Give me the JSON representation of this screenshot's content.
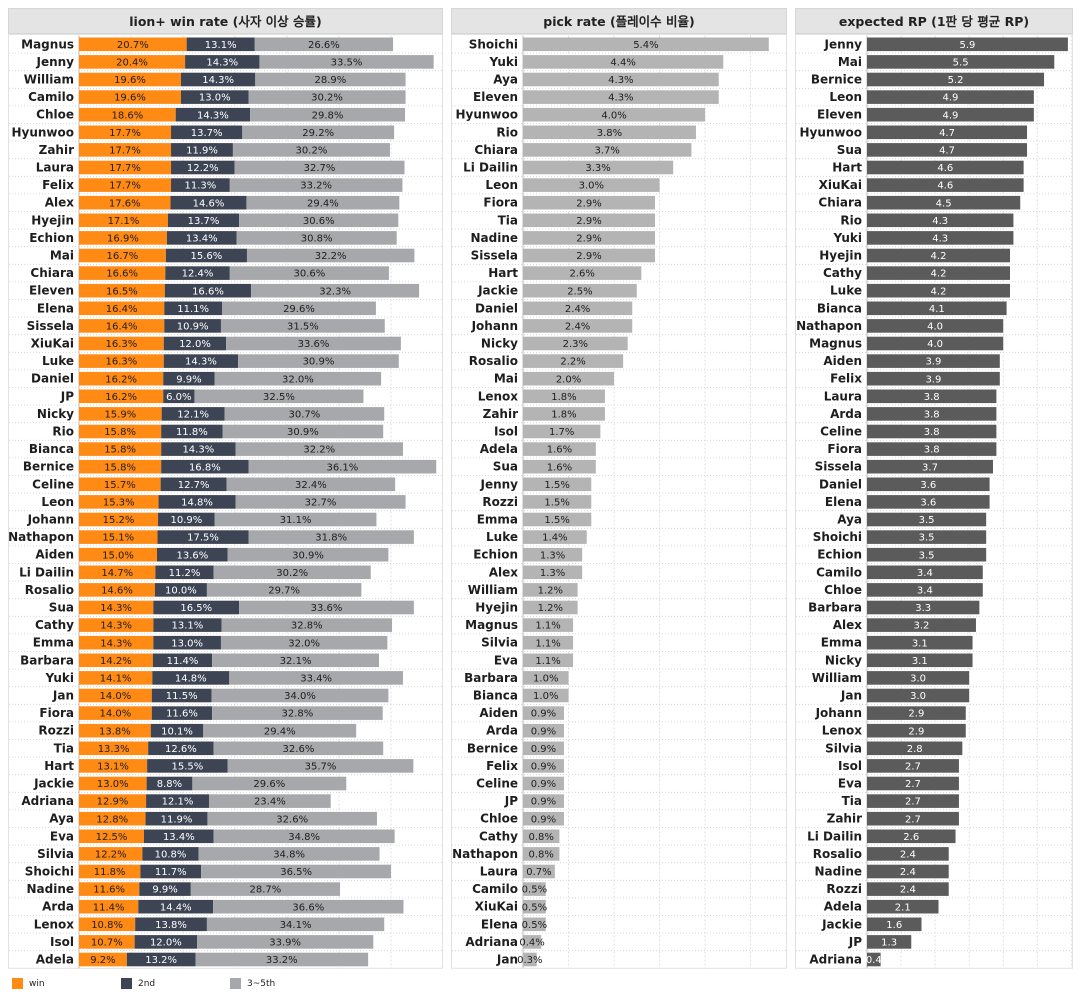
{
  "colors": {
    "win": "#ff8a14",
    "second": "#3d4454",
    "third_fifth": "#a6a8ab",
    "pick": "#b4b4b4",
    "rp": "#5b5b5b"
  },
  "legend": [
    {
      "label": "win",
      "color": "#ff8a14"
    },
    {
      "label": "2nd",
      "color": "#3d4454"
    },
    {
      "label": "3~5th",
      "color": "#a6a8ab"
    }
  ],
  "chart_data": [
    {
      "type": "bar",
      "stacked": true,
      "orientation": "horizontal",
      "title": "lion+ win rate (사자 이상 승률)",
      "categories": [
        "Magnus",
        "Jenny",
        "William",
        "Camilo",
        "Chloe",
        "Hyunwoo",
        "Zahir",
        "Laura",
        "Felix",
        "Alex",
        "Hyejin",
        "Echion",
        "Mai",
        "Chiara",
        "Eleven",
        "Elena",
        "Sissela",
        "XiuKai",
        "Luke",
        "Daniel",
        "JP",
        "Nicky",
        "Rio",
        "Bianca",
        "Bernice",
        "Celine",
        "Leon",
        "Johann",
        "Nathapon",
        "Aiden",
        "Li Dailin",
        "Rosalio",
        "Sua",
        "Cathy",
        "Emma",
        "Barbara",
        "Yuki",
        "Jan",
        "Fiora",
        "Rozzi",
        "Tia",
        "Hart",
        "Jackie",
        "Adriana",
        "Aya",
        "Eva",
        "Silvia",
        "Shoichi",
        "Nadine",
        "Arda",
        "Lenox",
        "Isol",
        "Adela"
      ],
      "series": [
        {
          "name": "win",
          "values": [
            20.7,
            20.4,
            19.6,
            19.6,
            18.6,
            17.7,
            17.7,
            17.7,
            17.7,
            17.6,
            17.1,
            16.9,
            16.7,
            16.6,
            16.5,
            16.4,
            16.4,
            16.3,
            16.3,
            16.2,
            16.2,
            15.9,
            15.8,
            15.8,
            15.8,
            15.7,
            15.3,
            15.2,
            15.1,
            15.0,
            14.7,
            14.6,
            14.3,
            14.3,
            14.3,
            14.2,
            14.1,
            14.0,
            14.0,
            13.8,
            13.3,
            13.1,
            13.0,
            12.9,
            12.8,
            12.5,
            12.2,
            11.8,
            11.6,
            11.4,
            10.8,
            10.7,
            9.2
          ]
        },
        {
          "name": "2nd",
          "values": [
            13.1,
            14.3,
            14.3,
            13.0,
            14.3,
            13.7,
            11.9,
            12.2,
            11.3,
            14.6,
            13.7,
            13.4,
            15.6,
            12.4,
            16.6,
            11.1,
            10.9,
            12.0,
            14.3,
            9.9,
            6.0,
            12.1,
            11.8,
            14.3,
            16.8,
            12.7,
            14.8,
            10.9,
            17.5,
            13.6,
            11.2,
            10.0,
            16.5,
            13.1,
            13.0,
            11.4,
            14.8,
            11.5,
            11.6,
            10.1,
            12.6,
            15.5,
            8.8,
            12.1,
            11.9,
            13.4,
            10.8,
            11.7,
            9.9,
            14.4,
            13.8,
            12.0,
            13.2
          ]
        },
        {
          "name": "3~5th",
          "values": [
            26.6,
            33.5,
            28.9,
            30.2,
            29.8,
            29.2,
            30.2,
            32.7,
            33.2,
            29.4,
            30.6,
            30.8,
            32.2,
            30.6,
            32.3,
            29.6,
            31.5,
            33.6,
            30.9,
            32.0,
            32.5,
            30.7,
            30.9,
            32.2,
            36.1,
            32.4,
            32.7,
            31.1,
            31.8,
            30.9,
            30.2,
            29.7,
            33.6,
            32.8,
            32.0,
            32.1,
            33.4,
            34.0,
            32.8,
            29.4,
            32.6,
            35.7,
            29.6,
            23.4,
            32.6,
            34.8,
            34.8,
            36.5,
            28.7,
            36.6,
            34.1,
            33.9,
            33.2
          ]
        }
      ],
      "xlim": [
        0,
        70
      ],
      "value_labels": "percent"
    },
    {
      "type": "bar",
      "orientation": "horizontal",
      "title": "pick rate (플레이수 비율)",
      "categories": [
        "Shoichi",
        "Yuki",
        "Aya",
        "Eleven",
        "Hyunwoo",
        "Rio",
        "Chiara",
        "Li Dailin",
        "Leon",
        "Fiora",
        "Tia",
        "Nadine",
        "Sissela",
        "Hart",
        "Jackie",
        "Daniel",
        "Johann",
        "Nicky",
        "Rosalio",
        "Mai",
        "Lenox",
        "Zahir",
        "Isol",
        "Adela",
        "Sua",
        "Jenny",
        "Rozzi",
        "Emma",
        "Luke",
        "Echion",
        "Alex",
        "William",
        "Hyejin",
        "Magnus",
        "Silvia",
        "Eva",
        "Barbara",
        "Bianca",
        "Aiden",
        "Arda",
        "Bernice",
        "Felix",
        "Celine",
        "JP",
        "Chloe",
        "Cathy",
        "Nathapon",
        "Laura",
        "Camilo",
        "XiuKai",
        "Elena",
        "Adriana",
        "Jan"
      ],
      "values": [
        5.4,
        4.4,
        4.3,
        4.3,
        4.0,
        3.8,
        3.7,
        3.3,
        3.0,
        2.9,
        2.9,
        2.9,
        2.9,
        2.6,
        2.5,
        2.4,
        2.4,
        2.3,
        2.2,
        2.0,
        1.8,
        1.8,
        1.7,
        1.6,
        1.6,
        1.5,
        1.5,
        1.5,
        1.4,
        1.3,
        1.3,
        1.2,
        1.2,
        1.1,
        1.1,
        1.1,
        1.0,
        1.0,
        0.9,
        0.9,
        0.9,
        0.9,
        0.9,
        0.9,
        0.9,
        0.8,
        0.8,
        0.7,
        0.5,
        0.5,
        0.5,
        0.4,
        0.3
      ],
      "xlim": [
        0,
        5.8
      ],
      "value_labels": "percent"
    },
    {
      "type": "bar",
      "orientation": "horizontal",
      "title": "expected RP (1판 당 평균 RP)",
      "categories": [
        "Jenny",
        "Mai",
        "Bernice",
        "Leon",
        "Eleven",
        "Hyunwoo",
        "Sua",
        "Hart",
        "XiuKai",
        "Chiara",
        "Rio",
        "Yuki",
        "Hyejin",
        "Cathy",
        "Luke",
        "Bianca",
        "Nathapon",
        "Magnus",
        "Aiden",
        "Felix",
        "Laura",
        "Arda",
        "Celine",
        "Fiora",
        "Sissela",
        "Daniel",
        "Elena",
        "Aya",
        "Shoichi",
        "Echion",
        "Camilo",
        "Chloe",
        "Barbara",
        "Alex",
        "Emma",
        "Nicky",
        "William",
        "Jan",
        "Johann",
        "Lenox",
        "Silvia",
        "Isol",
        "Eva",
        "Tia",
        "Zahir",
        "Li Dailin",
        "Rosalio",
        "Nadine",
        "Rozzi",
        "Adela",
        "Jackie",
        "JP",
        "Adriana"
      ],
      "values": [
        5.9,
        5.5,
        5.2,
        4.9,
        4.9,
        4.7,
        4.7,
        4.6,
        4.6,
        4.5,
        4.3,
        4.3,
        4.2,
        4.2,
        4.2,
        4.1,
        4.0,
        4.0,
        3.9,
        3.9,
        3.8,
        3.8,
        3.8,
        3.8,
        3.7,
        3.6,
        3.6,
        3.5,
        3.5,
        3.5,
        3.4,
        3.4,
        3.3,
        3.2,
        3.1,
        3.1,
        3.0,
        3.0,
        2.9,
        2.9,
        2.8,
        2.7,
        2.7,
        2.7,
        2.7,
        2.6,
        2.4,
        2.4,
        2.4,
        2.1,
        1.6,
        1.3,
        0.4
      ],
      "xlim": [
        0,
        6.05
      ],
      "value_labels": "number"
    }
  ]
}
